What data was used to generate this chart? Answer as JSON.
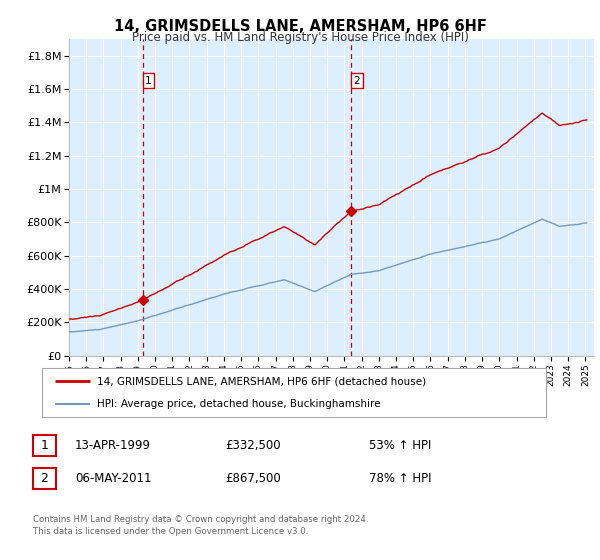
{
  "title": "14, GRIMSDELLS LANE, AMERSHAM, HP6 6HF",
  "subtitle": "Price paid vs. HM Land Registry's House Price Index (HPI)",
  "legend_line1": "14, GRIMSDELLS LANE, AMERSHAM, HP6 6HF (detached house)",
  "legend_line2": "HPI: Average price, detached house, Buckinghamshire",
  "footer": "Contains HM Land Registry data © Crown copyright and database right 2024.\nThis data is licensed under the Open Government Licence v3.0.",
  "sale1_date": "13-APR-1999",
  "sale1_price": 332500,
  "sale1_pct": "53% ↑ HPI",
  "sale2_date": "06-MAY-2011",
  "sale2_price": 867500,
  "sale2_pct": "78% ↑ HPI",
  "ylim": [
    0,
    1900000
  ],
  "yticks": [
    0,
    200000,
    400000,
    600000,
    800000,
    1000000,
    1200000,
    1400000,
    1600000,
    1800000
  ],
  "ytick_labels": [
    "£0",
    "£200K",
    "£400K",
    "£600K",
    "£800K",
    "£1M",
    "£1.2M",
    "£1.4M",
    "£1.6M",
    "£1.8M"
  ],
  "red_color": "#cc0000",
  "blue_color": "#7799bb",
  "bg_color": "#ddeeff",
  "outer_bg": "#f0f0f0",
  "grid_color": "#ffffff",
  "sale1_year": 1999.28,
  "sale2_year": 2011.38,
  "xmin": 1995,
  "xmax": 2025.5
}
